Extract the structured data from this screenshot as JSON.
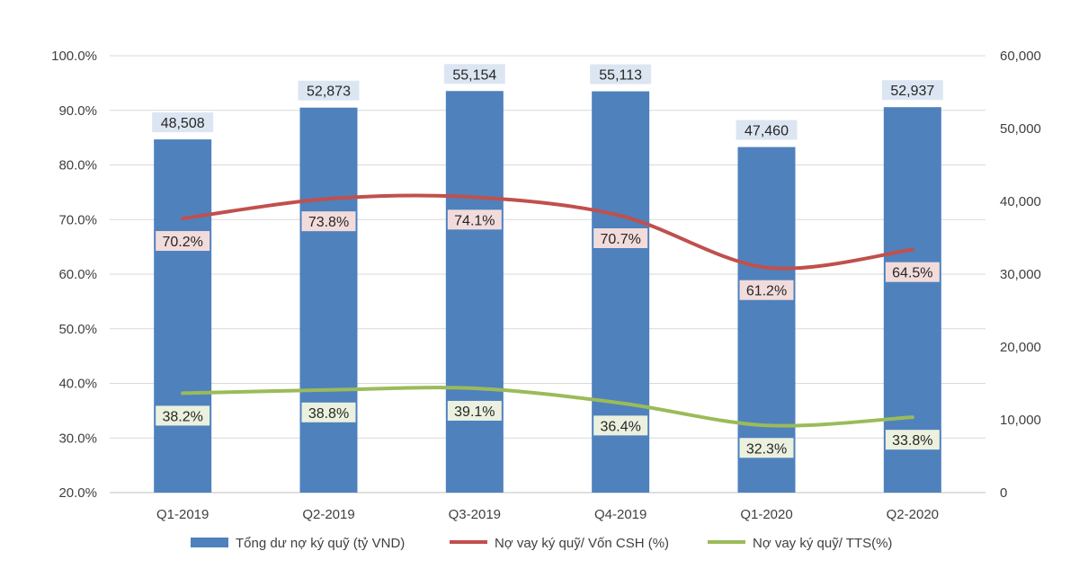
{
  "chart_data": {
    "type": "bar",
    "categories": [
      "Q1-2019",
      "Q2-2019",
      "Q3-2019",
      "Q4-2019",
      "Q1-2020",
      "Q2-2020"
    ],
    "series": [
      {
        "name": "Tổng dư nợ ký quỹ (tỷ VND)",
        "type": "bar",
        "axis": "right",
        "color": "#4f81bd",
        "values": [
          48508,
          52873,
          55154,
          55113,
          47460,
          52937
        ],
        "labels": [
          "48,508",
          "52,873",
          "55,154",
          "55,113",
          "47,460",
          "52,937"
        ]
      },
      {
        "name": "Nợ vay ký quỹ/ Vốn CSH (%)",
        "type": "line",
        "axis": "left",
        "color": "#c0504d",
        "values": [
          70.2,
          73.8,
          74.1,
          70.7,
          61.2,
          64.5
        ],
        "labels": [
          "70.2%",
          "73.8%",
          "74.1%",
          "70.7%",
          "61.2%",
          "64.5%"
        ]
      },
      {
        "name": "Nợ vay ký quỹ/ TTS(%)",
        "type": "line",
        "axis": "left",
        "color": "#9bbb59",
        "values": [
          38.2,
          38.8,
          39.1,
          36.4,
          32.3,
          33.8
        ],
        "labels": [
          "38.2%",
          "38.8%",
          "39.1%",
          "36.4%",
          "32.3%",
          "33.8%"
        ]
      }
    ],
    "left_axis": {
      "range": [
        20,
        100
      ],
      "ticks": [
        20,
        30,
        40,
        50,
        60,
        70,
        80,
        90,
        100
      ],
      "tick_labels": [
        "20.0%",
        "30.0%",
        "40.0%",
        "50.0%",
        "60.0%",
        "70.0%",
        "80.0%",
        "90.0%",
        "100.0%"
      ]
    },
    "right_axis": {
      "range": [
        0,
        60000
      ],
      "ticks": [
        0,
        10000,
        20000,
        30000,
        40000,
        50000,
        60000
      ],
      "tick_labels": [
        "0",
        "10,000",
        "20,000",
        "30,000",
        "40,000",
        "50,000",
        "60,000"
      ]
    },
    "grid": true,
    "legend_position": "bottom"
  }
}
